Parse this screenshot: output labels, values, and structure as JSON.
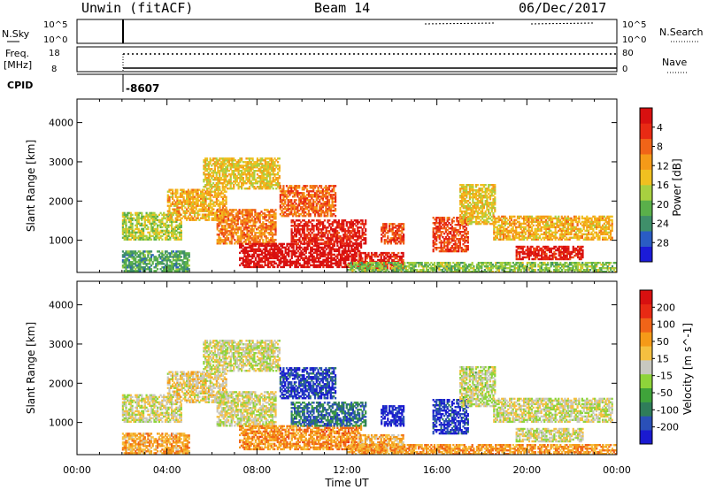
{
  "header": {
    "station": "Unwin (fitACF)",
    "beam": "Beam 14",
    "date": "06/Dec/2017"
  },
  "strip_labels": {
    "nsky": "N.Sky",
    "freq_line1": "Freq.",
    "freq_line2": "[MHz]",
    "cpid": "CPID",
    "nsearch": "N.Search",
    "nave": "Nave",
    "nsky_hi": "10^5",
    "nsky_lo": "10^0",
    "nsearch_hi": "10^5",
    "nsearch_lo": "10^0",
    "freq_hi": "18",
    "freq_lo": "8",
    "nave_hi": "80",
    "nave_lo": "0",
    "cpid_value": "-8607"
  },
  "chart_data": [
    {
      "type": "heatmap",
      "name": "power",
      "ylabel": "Slant Range [km]",
      "xlabel": "",
      "ylim": [
        180,
        4600
      ],
      "xlim": [
        0,
        24
      ],
      "yticks": [
        "1000",
        "2000",
        "3000",
        "4000"
      ],
      "ytick_values": [
        1000,
        2000,
        3000,
        4000
      ],
      "colorbar": {
        "label": "Power [dB]",
        "ticks": [
          "4",
          "8",
          "12",
          "16",
          "20",
          "24",
          "28"
        ],
        "colors": [
          "#1b1bd8",
          "#2a5cc4",
          "#3f8f6a",
          "#5ab04a",
          "#a8d040",
          "#f0c020",
          "#f59a18",
          "#f06418",
          "#e82a14",
          "#d81010"
        ]
      },
      "echo_regions": [
        {
          "t": [
            2.0,
            4.6
          ],
          "r": [
            1000,
            1700
          ],
          "level": 0.45
        },
        {
          "t": [
            2.0,
            5.0
          ],
          "r": [
            200,
            700
          ],
          "level": 0.3
        },
        {
          "t": [
            4.0,
            6.6
          ],
          "r": [
            1500,
            2300
          ],
          "level": 0.6
        },
        {
          "t": [
            5.6,
            9.0
          ],
          "r": [
            2300,
            3100
          ],
          "level": 0.55
        },
        {
          "t": [
            6.2,
            8.8
          ],
          "r": [
            900,
            1800
          ],
          "level": 0.7
        },
        {
          "t": [
            7.2,
            12.6
          ],
          "r": [
            300,
            900
          ],
          "level": 0.98
        },
        {
          "t": [
            9.5,
            12.8
          ],
          "r": [
            900,
            1500
          ],
          "level": 0.9
        },
        {
          "t": [
            9.0,
            11.5
          ],
          "r": [
            1600,
            2400
          ],
          "level": 0.75
        },
        {
          "t": [
            12.5,
            14.5
          ],
          "r": [
            250,
            700
          ],
          "level": 0.88
        },
        {
          "t": [
            13.5,
            14.5
          ],
          "r": [
            900,
            1400
          ],
          "level": 0.8
        },
        {
          "t": [
            15.8,
            17.4
          ],
          "r": [
            700,
            1600
          ],
          "level": 0.82
        },
        {
          "t": [
            17.0,
            18.6
          ],
          "r": [
            1400,
            2400
          ],
          "level": 0.55
        },
        {
          "t": [
            18.5,
            23.8
          ],
          "r": [
            1000,
            1600
          ],
          "level": 0.6
        },
        {
          "t": [
            19.5,
            22.5
          ],
          "r": [
            500,
            850
          ],
          "level": 0.9
        },
        {
          "t": [
            12.0,
            24.0
          ],
          "r": [
            180,
            420
          ],
          "level": 0.4
        }
      ]
    },
    {
      "type": "heatmap",
      "name": "velocity",
      "ylabel": "Slant Range [km]",
      "xlabel": "Time UT",
      "ylim": [
        180,
        4600
      ],
      "xlim": [
        0,
        24
      ],
      "yticks": [
        "1000",
        "2000",
        "3000",
        "4000"
      ],
      "ytick_values": [
        1000,
        2000,
        3000,
        4000
      ],
      "xticks": [
        "00:00",
        "04:00",
        "08:00",
        "12:00",
        "16:00",
        "20:00",
        "00:00"
      ],
      "xtick_values": [
        0,
        4,
        8,
        12,
        16,
        20,
        24
      ],
      "colorbar": {
        "label": "Velocity [m s^-1]",
        "ticks": [
          "200",
          "100",
          "50",
          "15",
          "-15",
          "-50",
          "-100",
          "-200"
        ],
        "colors": [
          "#1a1ad0",
          "#2a50b8",
          "#2f7d5a",
          "#3fa33a",
          "#8ed43a",
          "#c8c8c0",
          "#f5c040",
          "#f59a18",
          "#f06418",
          "#e82a14",
          "#d81010"
        ]
      },
      "echo_regions": [
        {
          "t": [
            2.0,
            4.6
          ],
          "r": [
            1000,
            1700
          ],
          "level": 0.5
        },
        {
          "t": [
            2.0,
            5.0
          ],
          "r": [
            200,
            700
          ],
          "level": 0.65
        },
        {
          "t": [
            4.0,
            6.6
          ],
          "r": [
            1500,
            2300
          ],
          "level": 0.55
        },
        {
          "t": [
            5.6,
            9.0
          ],
          "r": [
            2300,
            3100
          ],
          "level": 0.5
        },
        {
          "t": [
            6.2,
            8.8
          ],
          "r": [
            900,
            1800
          ],
          "level": 0.5
        },
        {
          "t": [
            7.2,
            12.6
          ],
          "r": [
            300,
            900
          ],
          "level": 0.7
        },
        {
          "t": [
            9.5,
            12.8
          ],
          "r": [
            900,
            1500
          ],
          "level": 0.2
        },
        {
          "t": [
            9.0,
            11.5
          ],
          "r": [
            1600,
            2400
          ],
          "level": 0.1
        },
        {
          "t": [
            12.5,
            14.5
          ],
          "r": [
            250,
            700
          ],
          "level": 0.62
        },
        {
          "t": [
            13.5,
            14.5
          ],
          "r": [
            900,
            1400
          ],
          "level": 0.05
        },
        {
          "t": [
            15.8,
            17.4
          ],
          "r": [
            700,
            1600
          ],
          "level": 0.1
        },
        {
          "t": [
            17.0,
            18.6
          ],
          "r": [
            1400,
            2400
          ],
          "level": 0.48
        },
        {
          "t": [
            18.5,
            23.8
          ],
          "r": [
            1000,
            1600
          ],
          "level": 0.5
        },
        {
          "t": [
            19.5,
            22.5
          ],
          "r": [
            500,
            850
          ],
          "level": 0.5
        },
        {
          "t": [
            12.0,
            24.0
          ],
          "r": [
            180,
            420
          ],
          "level": 0.68
        }
      ]
    }
  ]
}
